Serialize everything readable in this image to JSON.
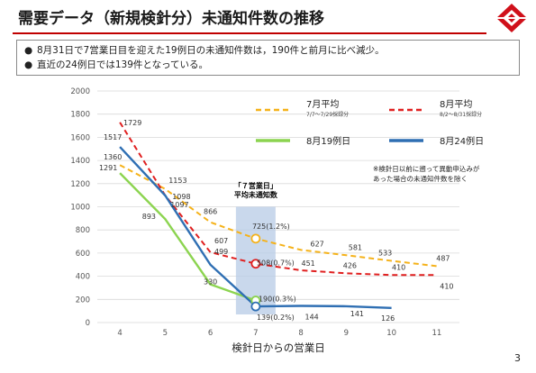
{
  "header": {
    "title": "需要データ（新規検針分）未通知件数の推移",
    "logo_icon": "red-diamond-logo-icon",
    "accent_color": "#c00000"
  },
  "bullets": [
    "8月31日で7営業日目を迎えた19例日の未通知件数は，190件と前月に比べ減少。",
    "直近の24例日では139件となっている。"
  ],
  "page_number": "3",
  "chart_data": {
    "type": "line",
    "xlabel": "検針日からの営業日",
    "ylabel": "",
    "x": [
      4,
      5,
      6,
      7,
      8,
      9,
      10,
      11
    ],
    "xlim": [
      3.5,
      11.5
    ],
    "ylim": [
      0,
      2000
    ],
    "y_ticks": [
      0,
      200,
      400,
      600,
      800,
      1000,
      1200,
      1400,
      1600,
      1800,
      2000
    ],
    "grid": true,
    "legend_position": "top-right",
    "series": [
      {
        "name": "7月平均",
        "sublabel": "7/7〜7/29採録分",
        "style": "dashed",
        "color": "#f5b21a",
        "points": [
          [
            4,
            1360
          ],
          [
            5,
            1153
          ],
          [
            6,
            866
          ],
          [
            7,
            725
          ],
          [
            8,
            627
          ],
          [
            9,
            581
          ],
          [
            10,
            533
          ],
          [
            11,
            487
          ]
        ],
        "labels": [
          "1360",
          "1153",
          "866",
          "725(1.2%)",
          "627",
          "581",
          "533",
          "487"
        ]
      },
      {
        "name": "8月平均",
        "sublabel": "8/2〜8/31採録分",
        "style": "dashed",
        "color": "#e02020",
        "points": [
          [
            4,
            1729
          ],
          [
            5,
            1098
          ],
          [
            6,
            607
          ],
          [
            7,
            508
          ],
          [
            8,
            451
          ],
          [
            9,
            426
          ],
          [
            10,
            410
          ],
          [
            11,
            410
          ]
        ],
        "labels": [
          "1729",
          "1098",
          "607",
          "508(0.7%)",
          "451",
          "426",
          "410",
          "410"
        ]
      },
      {
        "name": "8月19例日",
        "style": "solid",
        "color": "#8cd450",
        "points": [
          [
            4,
            1291
          ],
          [
            5,
            893
          ],
          [
            6,
            330
          ],
          [
            7,
            190
          ]
        ],
        "labels": [
          "1291",
          "893",
          "330",
          "190(0.3%)"
        ]
      },
      {
        "name": "8月24例日",
        "style": "solid",
        "color": "#2f6fb3",
        "points": [
          [
            4,
            1517
          ],
          [
            5,
            1097
          ],
          [
            6,
            499
          ],
          [
            7,
            139
          ],
          [
            8,
            144
          ],
          [
            9,
            141
          ],
          [
            10,
            126
          ]
        ],
        "labels": [
          "1517",
          "1097",
          "499",
          "139(0.2%)",
          "144",
          "141",
          "126"
        ]
      }
    ],
    "highlight": {
      "x": 7,
      "title": "「７営業日」",
      "subtitle": "平均未通知数"
    },
    "annotations": [
      "※検針日以前に遡って異動申込みが",
      "あった場合の未通知件数を除く"
    ]
  }
}
